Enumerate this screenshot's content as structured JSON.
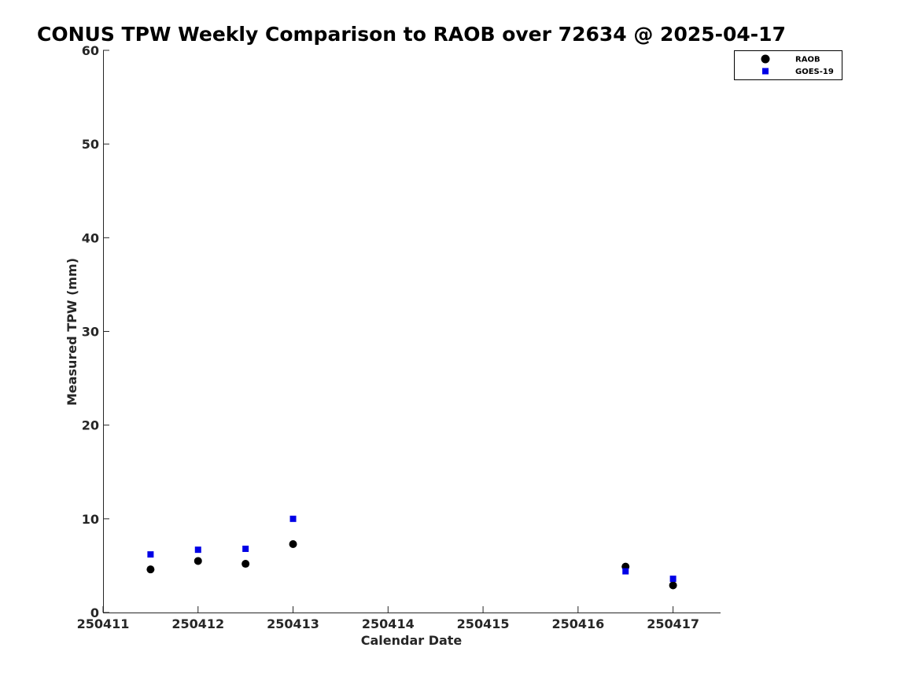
{
  "chart_data": {
    "type": "scatter",
    "title": "CONUS TPW Weekly Comparison to RAOB over 72634 @ 2025-04-17",
    "xlabel": "Calendar Date",
    "ylabel": "Measured TPW (mm)",
    "xlim": [
      250411,
      250417.5
    ],
    "ylim": [
      0,
      60
    ],
    "xticks": [
      250411,
      250412,
      250413,
      250414,
      250415,
      250416,
      250417
    ],
    "xtick_labels": [
      "250411",
      "250412",
      "250413",
      "250414",
      "250415",
      "250416",
      "250417"
    ],
    "yticks": [
      0,
      10,
      20,
      30,
      40,
      50,
      60
    ],
    "ytick_labels": [
      "0",
      "10",
      "20",
      "30",
      "40",
      "50",
      "60"
    ],
    "grid": false,
    "legend_position": "top-right",
    "series": [
      {
        "name": "RAOB",
        "marker": "circle",
        "color": "#000000",
        "x": [
          250411.5,
          250412,
          250412.5,
          250413,
          250416.5,
          250417
        ],
        "y": [
          4.6,
          5.5,
          5.2,
          7.3,
          4.9,
          2.9
        ]
      },
      {
        "name": "GOES-19",
        "marker": "square",
        "color": "#0000e6",
        "x": [
          250411.5,
          250412,
          250412.5,
          250413,
          250416.5,
          250417
        ],
        "y": [
          6.2,
          6.7,
          6.8,
          10.0,
          4.4,
          3.6
        ]
      }
    ]
  }
}
